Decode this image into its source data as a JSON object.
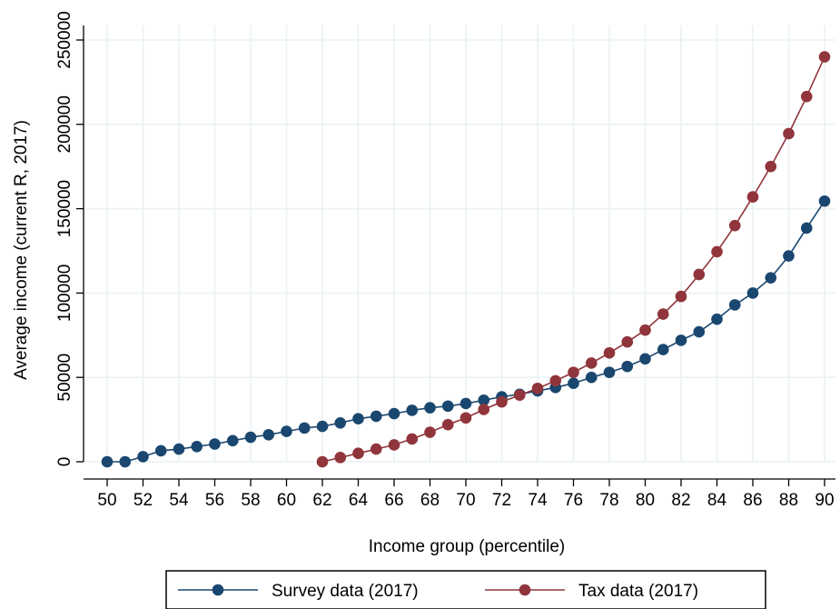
{
  "chart_data": {
    "type": "line",
    "xlabel": "Income group (percentile)",
    "ylabel": "Average income (current R, 2017)",
    "xlim": [
      50,
      90
    ],
    "ylim": [
      0,
      250000
    ],
    "x_ticks": [
      50,
      52,
      54,
      56,
      58,
      60,
      62,
      64,
      66,
      68,
      70,
      72,
      74,
      76,
      78,
      80,
      82,
      84,
      86,
      88,
      90
    ],
    "x_tick_labels": [
      "50",
      "52",
      "54",
      "56",
      "58",
      "60",
      "62",
      "64",
      "66",
      "68",
      "70",
      "72",
      "74",
      "76",
      "78",
      "80",
      "82",
      "84",
      "86",
      "88",
      "90"
    ],
    "y_ticks": [
      0,
      50000,
      100000,
      150000,
      200000,
      250000
    ],
    "y_tick_labels": [
      "0",
      "50000",
      "100000",
      "150000",
      "200000",
      "250000"
    ],
    "grid": true,
    "legend_position": "bottom",
    "series": [
      {
        "name": "Survey data (2017)",
        "color": "#1a476f",
        "x": [
          50,
          51,
          52,
          53,
          54,
          55,
          56,
          57,
          58,
          59,
          60,
          61,
          62,
          63,
          64,
          65,
          66,
          67,
          68,
          69,
          70,
          71,
          72,
          73,
          74,
          75,
          76,
          77,
          78,
          79,
          80,
          81,
          82,
          83,
          84,
          85,
          86,
          87,
          88,
          89,
          90
        ],
        "values": [
          0,
          0,
          3000,
          6500,
          7500,
          9000,
          10500,
          12500,
          14500,
          16000,
          18000,
          20000,
          21000,
          23000,
          25500,
          27000,
          28500,
          30500,
          32000,
          33000,
          34500,
          36500,
          38500,
          40000,
          42000,
          44000,
          46500,
          50000,
          53000,
          56500,
          61000,
          66500,
          72000,
          77000,
          84500,
          93000,
          100000,
          109000,
          122000,
          138500,
          154500
        ]
      },
      {
        "name": "Tax data (2017)",
        "color": "#90353b",
        "x": [
          62,
          63,
          64,
          65,
          66,
          67,
          68,
          69,
          70,
          71,
          72,
          73,
          74,
          75,
          76,
          77,
          78,
          79,
          80,
          81,
          82,
          83,
          84,
          85,
          86,
          87,
          88,
          89,
          90
        ],
        "values": [
          0,
          2500,
          5000,
          7500,
          10000,
          13500,
          17500,
          22000,
          26000,
          31000,
          35500,
          39500,
          43500,
          48000,
          53000,
          58500,
          64500,
          71000,
          78000,
          87500,
          98000,
          111000,
          124500,
          140000,
          157000,
          175000,
          194500,
          216500,
          240000
        ]
      }
    ]
  }
}
